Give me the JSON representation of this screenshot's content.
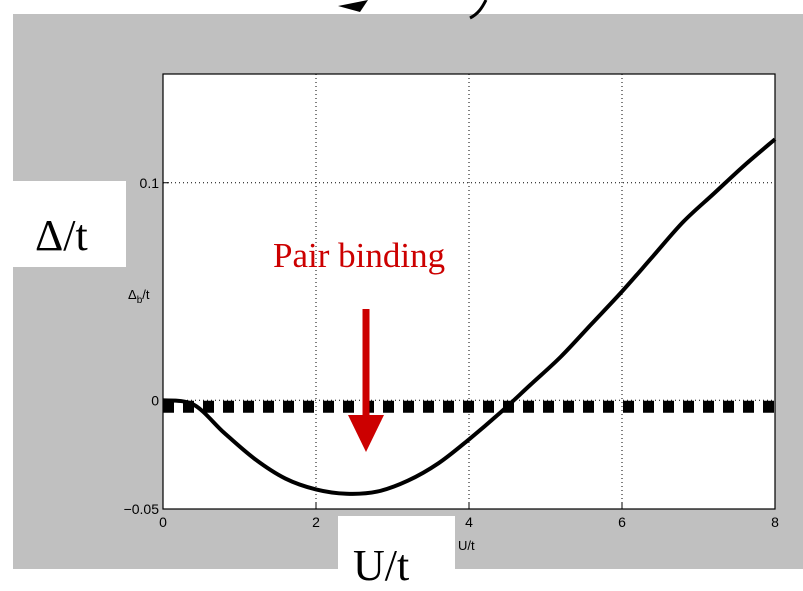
{
  "colors": {
    "figure_background": "#c0c0c0",
    "plot_background": "#ffffff",
    "axis": "#000000",
    "grid": "#000000",
    "curve": "#000000",
    "annotation": "#cc0000",
    "overlay_box": "#ffffff"
  },
  "overlay": {
    "y_label": "Δ/t",
    "x_label": "U/t"
  },
  "annotation": {
    "text": "Pair binding",
    "arrow": "down-arrow"
  },
  "chart_data": {
    "type": "line",
    "title": "",
    "xlabel": "U/t",
    "ylabel": "Δ_b/t",
    "xlim": [
      0,
      8
    ],
    "ylim": [
      -0.05,
      0.15
    ],
    "x_ticks": [
      0,
      2,
      4,
      6,
      8
    ],
    "y_ticks": [
      -0.05,
      0,
      0.1
    ],
    "x_tick_labels": [
      "0",
      "2",
      "4",
      "6",
      "8"
    ],
    "y_tick_labels": [
      "−0.05",
      "0",
      "0.1"
    ],
    "grid": true,
    "grid_style": "dotted",
    "series": [
      {
        "style": "solid",
        "x": [
          0,
          0.4,
          0.8,
          1.2,
          1.6,
          2.0,
          2.4,
          2.8,
          3.2,
          3.6,
          4.0,
          4.4,
          4.8,
          5.2,
          5.6,
          6.0,
          6.4,
          6.8,
          7.2,
          7.6,
          8.0
        ],
        "y": [
          0,
          -0.002,
          -0.015,
          -0.027,
          -0.036,
          -0.041,
          -0.043,
          -0.042,
          -0.037,
          -0.029,
          -0.018,
          -0.006,
          0.007,
          0.02,
          0.035,
          0.05,
          0.066,
          0.082,
          0.095,
          0.108,
          0.12
        ]
      },
      {
        "style": "dashed",
        "x": [
          0,
          8
        ],
        "y": [
          -0.003,
          -0.003
        ]
      }
    ]
  }
}
